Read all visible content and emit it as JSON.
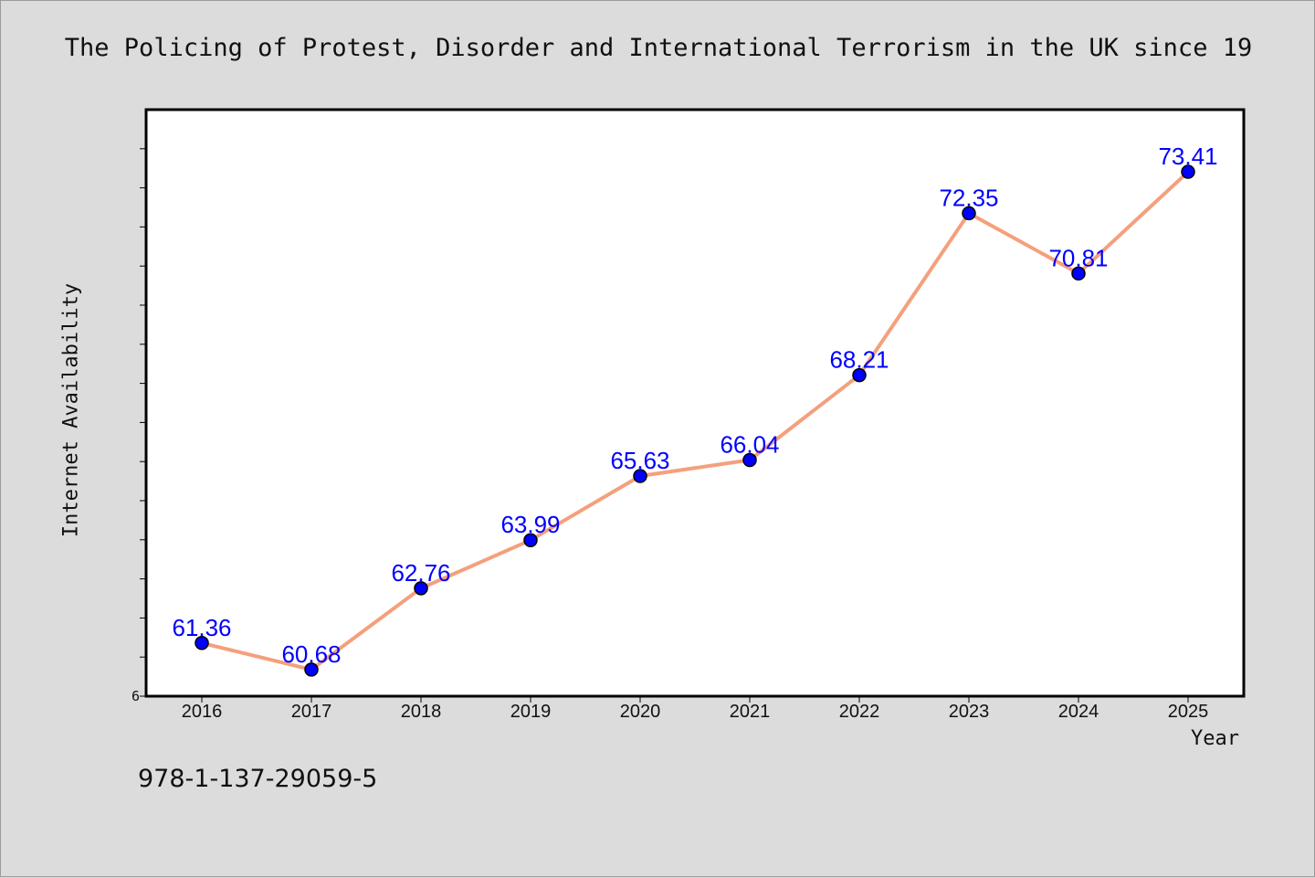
{
  "chart_data": {
    "type": "line",
    "title": "The Policing of Protest, Disorder and International Terrorism in the UK since 19",
    "xlabel": "Year",
    "ylabel": "Internet Availability",
    "categories": [
      "2016",
      "2017",
      "2018",
      "2019",
      "2020",
      "2021",
      "2022",
      "2023",
      "2024",
      "2025"
    ],
    "series": [
      {
        "values": [
          61.36,
          60.68,
          62.76,
          63.99,
          65.63,
          66.04,
          68.21,
          72.35,
          70.81,
          73.41
        ],
        "data_labels": [
          "61.36",
          "60.68",
          "62.76",
          "63.99",
          "65.63",
          "66.04",
          "68.21",
          "72.35",
          "70.81",
          "73.41"
        ]
      }
    ],
    "ylim": [
      60,
      75
    ],
    "y_tick_labels": [
      "6"
    ],
    "grid": false,
    "line_color": "#f4a07d",
    "marker_color": "#0000ff",
    "label_color": "#0000ff"
  },
  "footer": {
    "code": "978-1-137-29059-5"
  }
}
